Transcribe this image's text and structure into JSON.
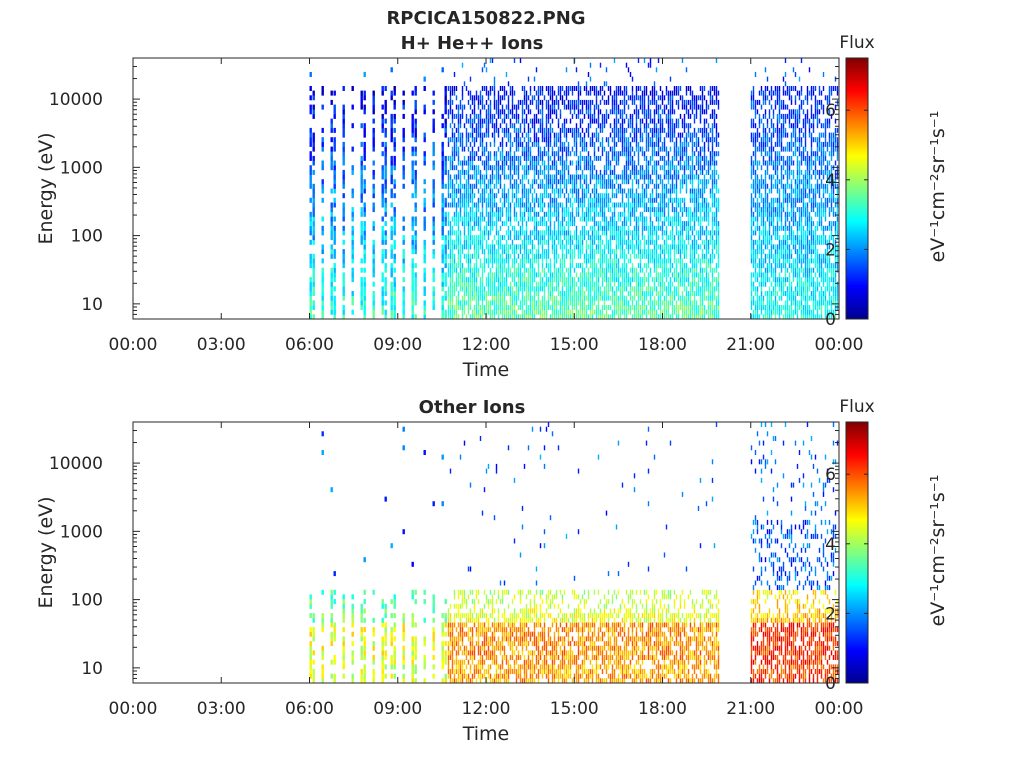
{
  "figure": {
    "title": "RPCICA150822.PNG"
  },
  "chart_data": [
    {
      "type": "heatmap",
      "title": "H+ He++ Ions",
      "xlabel": "Time",
      "ylabel": "Energy (eV)",
      "yscale": "log",
      "xticks": [
        "00:00",
        "03:00",
        "06:00",
        "09:00",
        "12:00",
        "15:00",
        "18:00",
        "21:00",
        "00:00"
      ],
      "yticks": [
        "10",
        "100",
        "1000",
        "10000"
      ],
      "xlim_hours": [
        0,
        24
      ],
      "ylim": [
        6,
        40000
      ],
      "colorbar": {
        "title": "Flux",
        "unit": "eV⁻¹cm⁻²sr⁻¹s⁻¹",
        "ticks": [
          "0",
          "2",
          "4",
          "6"
        ],
        "range": [
          0,
          7.5
        ],
        "colormap": "jet"
      },
      "segments": [
        {
          "start_hour": 6.0,
          "end_hour": 10.7,
          "mode": "sweeps",
          "flux_low_energy": 3.2,
          "flux_high_energy": 0.8
        },
        {
          "start_hour": 10.7,
          "end_hour": 19.9,
          "mode": "continuous",
          "flux_low_energy": 3.5,
          "flux_high_energy": 1.0
        },
        {
          "start_hour": 21.0,
          "end_hour": 24.0,
          "mode": "continuous",
          "flux_low_energy": 3.0,
          "flux_high_energy": 1.2
        }
      ],
      "grid": false,
      "legend": "none"
    },
    {
      "type": "heatmap",
      "title": "Other Ions",
      "xlabel": "Time",
      "ylabel": "Energy (eV)",
      "yscale": "log",
      "xticks": [
        "00:00",
        "03:00",
        "06:00",
        "09:00",
        "12:00",
        "15:00",
        "18:00",
        "21:00",
        "00:00"
      ],
      "yticks": [
        "10",
        "100",
        "1000",
        "10000"
      ],
      "xlim_hours": [
        0,
        24
      ],
      "ylim": [
        6,
        40000
      ],
      "colorbar": {
        "title": "Flux",
        "unit": "eV⁻¹cm⁻²sr⁻¹s⁻¹",
        "ticks": [
          "0",
          "2",
          "4",
          "6"
        ],
        "range": [
          0,
          7.5
        ],
        "colormap": "jet"
      },
      "segments": [
        {
          "start_hour": 6.0,
          "end_hour": 10.7,
          "mode": "sweeps",
          "flux_low_energy": 4.5,
          "flux_high_energy": 1.5
        },
        {
          "start_hour": 10.7,
          "end_hour": 19.9,
          "mode": "continuous",
          "flux_low_energy": 5.5,
          "flux_high_energy": 2.0
        },
        {
          "start_hour": 21.0,
          "end_hour": 24.0,
          "mode": "continuous",
          "flux_low_energy": 6.2,
          "flux_high_energy": 2.5
        }
      ],
      "grid": false,
      "legend": "none"
    }
  ]
}
